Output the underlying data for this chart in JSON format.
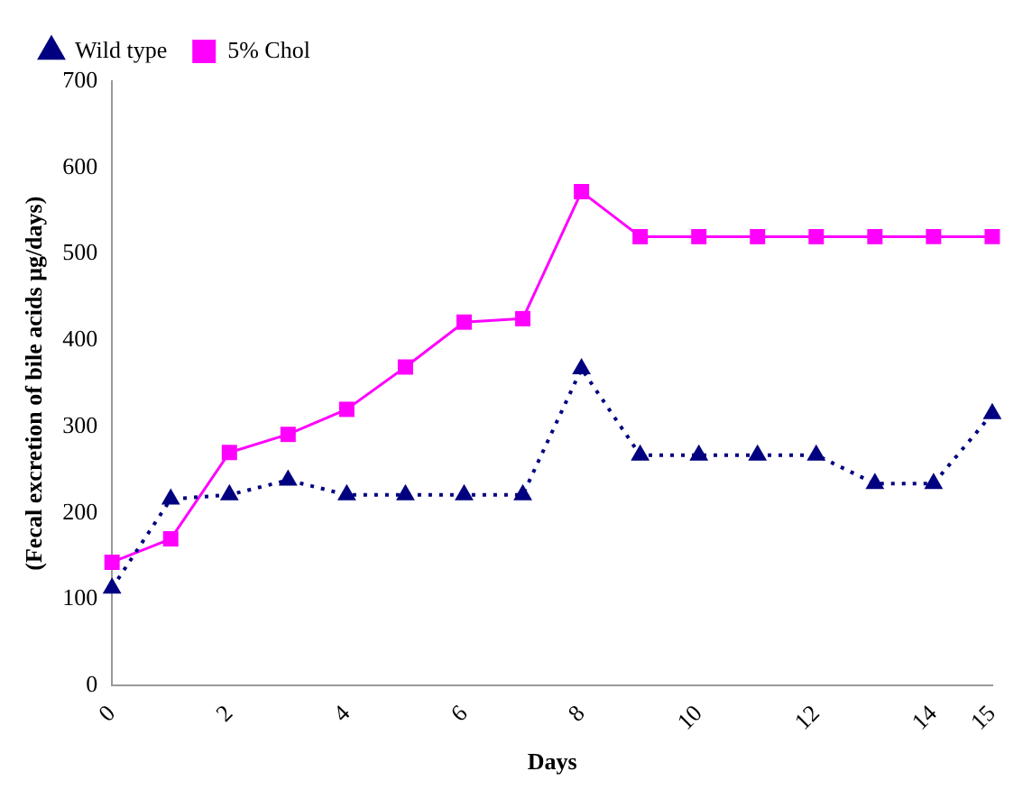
{
  "chart_data": {
    "type": "line",
    "xlabel": "Days",
    "ylabel": "(Fecal excretion of bile acids μg/days)",
    "categories": [
      "0",
      null,
      "2",
      null,
      "4",
      null,
      "6",
      null,
      "8",
      null,
      "10",
      null,
      "12",
      null,
      "14",
      "15"
    ],
    "ylim": [
      0,
      700
    ],
    "yticks": [
      0,
      100,
      200,
      300,
      400,
      500,
      600,
      700
    ],
    "grid": false,
    "legend": "top left",
    "series": [
      {
        "name": "Wild type",
        "color": "#000080",
        "marker": "triangle",
        "line_style": "dotted",
        "values": [
          113,
          216,
          221,
          238,
          221,
          221,
          221,
          221,
          367,
          267,
          267,
          267,
          267,
          234,
          234,
          315
        ]
      },
      {
        "name": "5% Chol",
        "color": "#ff00ff",
        "marker": "square",
        "line_style": "solid",
        "values": [
          143,
          170,
          270,
          291,
          320,
          369,
          421,
          425,
          572,
          520,
          520,
          520,
          520,
          520,
          520,
          520
        ]
      }
    ]
  }
}
